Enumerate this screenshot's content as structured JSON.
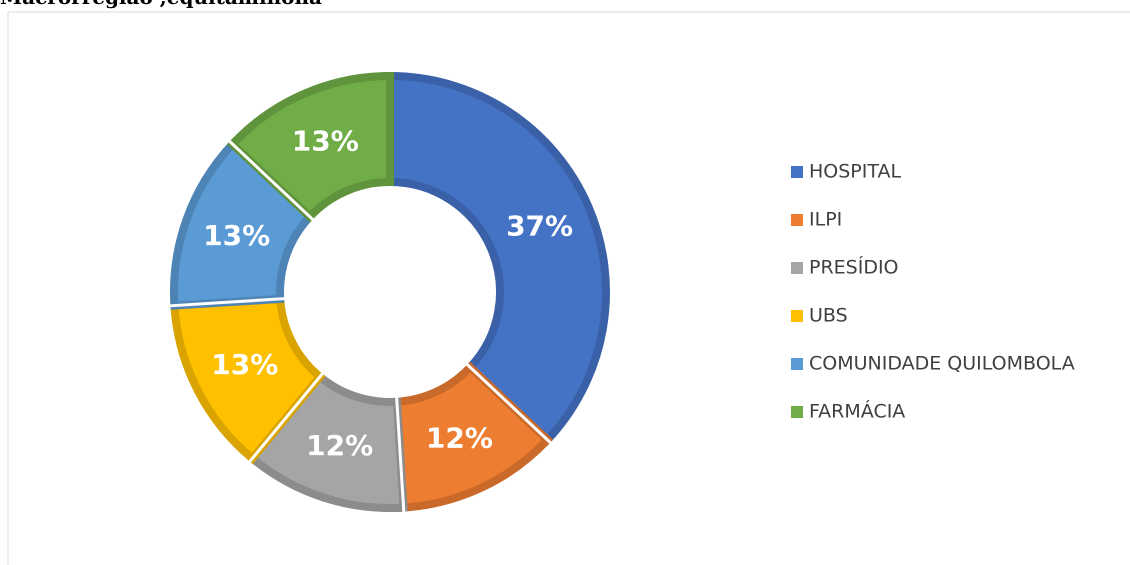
{
  "chart_data": {
    "type": "pie",
    "title": "Macrorregião ,equitaminona",
    "categories": [
      "HOSPITAL",
      "ILPI",
      "PRESÍDIO",
      "UBS",
      "COMUNIDADE QUILOMBOLA",
      "FARMÁCIA"
    ],
    "values": [
      37,
      12,
      12,
      13,
      13,
      13
    ],
    "value_labels": [
      "37%",
      "12%",
      "12%",
      "13%",
      "13%",
      "13%"
    ],
    "colors": [
      "#4472c4",
      "#ed7d31",
      "#a5a5a5",
      "#ffc000",
      "#5b9bd5",
      "#70ad47"
    ],
    "donut": true,
    "legend": "right"
  }
}
